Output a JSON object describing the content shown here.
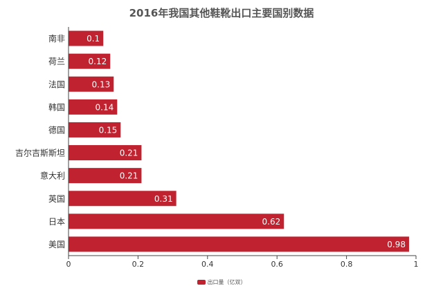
{
  "chart_data": {
    "type": "bar",
    "orientation": "horizontal",
    "title": "2016年我国其他鞋靴出口主要国别数据",
    "categories": [
      "南非",
      "荷兰",
      "法国",
      "韩国",
      "德国",
      "吉尔吉斯斯坦",
      "意大利",
      "英国",
      "日本",
      "美国"
    ],
    "series": [
      {
        "name": "出口量（亿双）",
        "values": [
          0.1,
          0.12,
          0.13,
          0.14,
          0.15,
          0.21,
          0.21,
          0.31,
          0.62,
          0.98
        ]
      }
    ],
    "xlim": [
      0,
      1
    ],
    "xticks": [
      0,
      0.2,
      0.4,
      0.6,
      0.8,
      1
    ],
    "xtick_labels": [
      "0",
      "0.2",
      "0.4",
      "0.6",
      "0.8",
      "1"
    ],
    "data_labels": [
      "0.1",
      "0.12",
      "0.13",
      "0.14",
      "0.15",
      "0.21",
      "0.21",
      "0.31",
      "0.62",
      "0.98"
    ],
    "grid": false,
    "legend_position": "bottom-center",
    "colors": {
      "bar": "#c0222f",
      "axis": "#444444",
      "text": "#333333",
      "label": "#ffffff"
    }
  }
}
